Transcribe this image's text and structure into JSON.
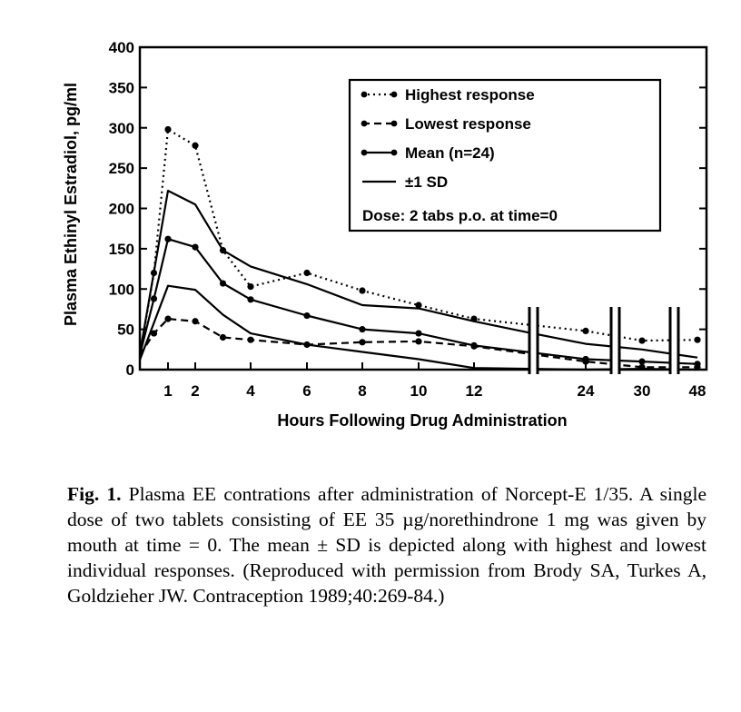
{
  "chart_data": {
    "type": "line",
    "xlabel": "Hours Following Drug Administration",
    "ylabel": "Plasma Ethinyl Estradiol, pg/ml",
    "ylim": [
      0,
      400
    ],
    "yticks": [
      0,
      50,
      100,
      150,
      200,
      250,
      300,
      350,
      400
    ],
    "xticks": [
      1,
      2,
      4,
      6,
      8,
      10,
      12,
      24,
      30,
      48
    ],
    "x_scale": "broken",
    "grid": false,
    "legend_position": "top-right",
    "annotation": "Dose: 2 tabs p.o. at time=0",
    "series": [
      {
        "name": "Highest response",
        "style": "dotted",
        "markers": true,
        "x": [
          0,
          0.5,
          1,
          2,
          3,
          4,
          6,
          8,
          10,
          12,
          24,
          30,
          48
        ],
        "y": [
          18,
          120,
          298,
          278,
          148,
          103,
          120,
          98,
          80,
          63,
          48,
          36,
          37
        ]
      },
      {
        "name": "Lowest response",
        "style": "dashed",
        "markers": true,
        "x": [
          0,
          0.5,
          1,
          2,
          3,
          4,
          6,
          8,
          10,
          12,
          24,
          30,
          48
        ],
        "y": [
          18,
          45,
          63,
          60,
          40,
          37,
          31,
          34,
          35,
          29,
          10,
          3,
          3
        ]
      },
      {
        "name": "Mean (n=24)",
        "style": "solid",
        "markers": true,
        "x": [
          0,
          0.5,
          1,
          2,
          3,
          4,
          6,
          8,
          10,
          12,
          24,
          30,
          48
        ],
        "y": [
          18,
          88,
          162,
          152,
          107,
          87,
          67,
          50,
          45,
          30,
          13,
          10,
          7
        ]
      },
      {
        "name": "±1 SD",
        "style": "solid",
        "markers": false,
        "x": [
          0,
          1,
          2,
          3,
          4,
          6,
          8,
          10,
          12,
          18,
          24,
          30,
          48
        ],
        "y": [
          20,
          222,
          205,
          148,
          128,
          106,
          80,
          76,
          60,
          46,
          32,
          25,
          15
        ]
      },
      {
        "name": "",
        "style": "solid",
        "markers": false,
        "x": [
          0,
          1,
          2,
          3,
          4,
          6,
          8,
          10,
          12,
          24,
          30,
          48
        ],
        "y": [
          12,
          104,
          99,
          68,
          45,
          31,
          22,
          13,
          2,
          0,
          1,
          0
        ]
      }
    ]
  },
  "legend_labels": [
    "Highest response",
    "Lowest response",
    "Mean (n=24)",
    "±1 SD"
  ],
  "caption": {
    "label": "Fig. 1.",
    "text": "Plasma EE contrations after administration of Norcept-E 1/35. A single dose of two tablets consisting of EE 35 µg/norethindrone 1 mg was given by mouth at time = 0. The mean ± SD is depicted along with highest and lowest individual responses. (Reproduced with permission from Brody SA, Turkes A, Goldzieher JW. Contraception 1989;40:269-84.)"
  }
}
